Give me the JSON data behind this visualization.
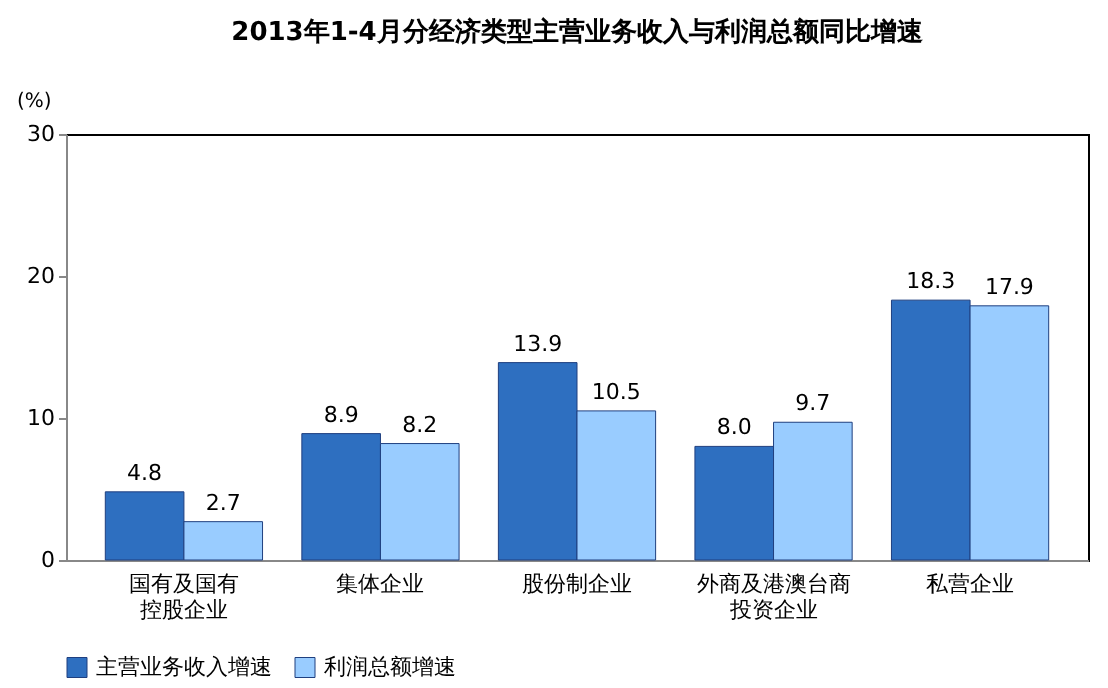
{
  "chart_data": {
    "type": "bar",
    "title": "2013年1-4月分经济类型主营业务收入与利润总额同比增速",
    "ylabel": "(%)",
    "categories": [
      "国有及国有控股企业",
      "集体企业",
      "股份制企业",
      "外商及港澳台商投资企业",
      "私营企业"
    ],
    "series": [
      {
        "name": "主营业务收入增速",
        "color": "#2e6fc0",
        "values": [
          4.8,
          8.9,
          13.9,
          8.0,
          18.3
        ],
        "value_labels": [
          "4.8",
          "8.9",
          "13.9",
          "8.0",
          "18.3"
        ]
      },
      {
        "name": "利润总额增速",
        "color": "#99ccff",
        "values": [
          2.7,
          8.2,
          10.5,
          9.7,
          17.9
        ],
        "value_labels": [
          "2.7",
          "8.2",
          "10.5",
          "9.7",
          "17.9"
        ]
      }
    ],
    "ylim": [
      0,
      30
    ],
    "yticks": [
      0,
      10,
      20,
      30
    ],
    "grid": false,
    "legend": "bottom"
  }
}
